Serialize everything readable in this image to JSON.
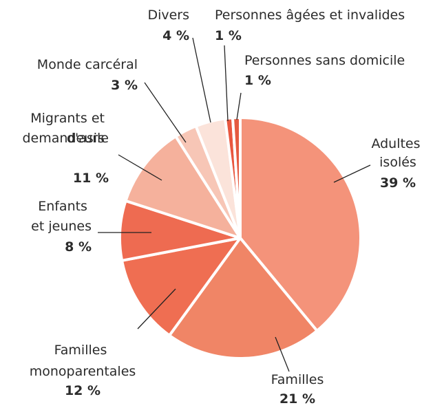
{
  "chart_data": {
    "type": "pie",
    "categories": [
      "Adultes isolés",
      "Familles",
      "Familles monoparentales",
      "Enfants et jeunes",
      "Migrants et demandeurs d'asile",
      "Monde carcéral",
      "Divers",
      "Personnes âgées et invalides",
      "Personnes sans domicile"
    ],
    "values": [
      39,
      21,
      12,
      8,
      11,
      3,
      4,
      1,
      1
    ],
    "value_labels": [
      "39 %",
      "21 %",
      "12 %",
      "8 %",
      "11 %",
      "3 %",
      "4 %",
      "1 %",
      "1 %"
    ],
    "colors": [
      "#f4937a",
      "#f08566",
      "#ef6e52",
      "#ee6b51",
      "#f5b19c",
      "#f7c6b6",
      "#fbe3da",
      "#e9573f",
      "#e55a40"
    ]
  }
}
